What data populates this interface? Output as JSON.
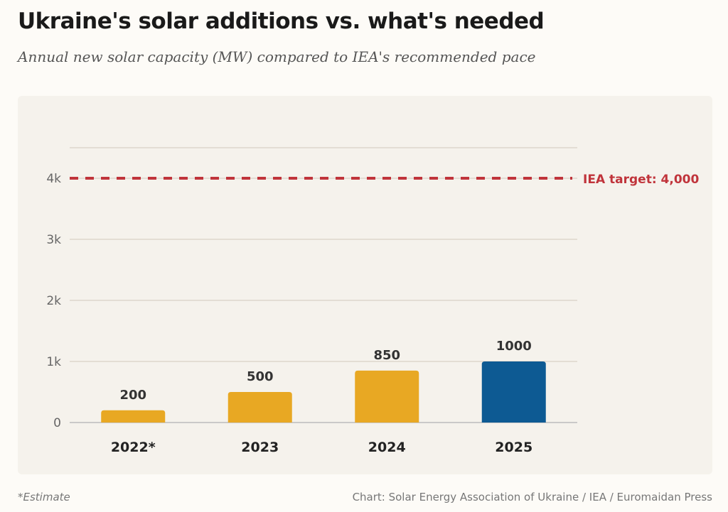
{
  "title": "Ukraine's solar additions vs. what's needed",
  "subtitle": "Annual new solar capacity (MW) compared to IEA's recommended pace",
  "footnote": "*Estimate",
  "source": "Chart: Solar Energy Association of Ukraine / IEA / Euromaidan Press",
  "chart_data": {
    "type": "bar",
    "categories": [
      "2022*",
      "2023",
      "2024",
      "2025"
    ],
    "values": [
      200,
      500,
      850,
      1000
    ],
    "data_labels": [
      "200",
      "500",
      "850",
      "1000"
    ],
    "colors": [
      "#e8a823",
      "#e8a823",
      "#e8a823",
      "#0d5a93"
    ],
    "ylim": [
      0,
      4500
    ],
    "yticks": [
      0,
      1000,
      2000,
      3000,
      4000
    ],
    "ytick_labels": [
      "0",
      "1k",
      "2k",
      "3k",
      "4k"
    ],
    "grid": true,
    "reference_line": {
      "value": 4000,
      "label": "IEA target: 4,000",
      "color": "#c0343b"
    },
    "xlabel": "",
    "ylabel": ""
  }
}
